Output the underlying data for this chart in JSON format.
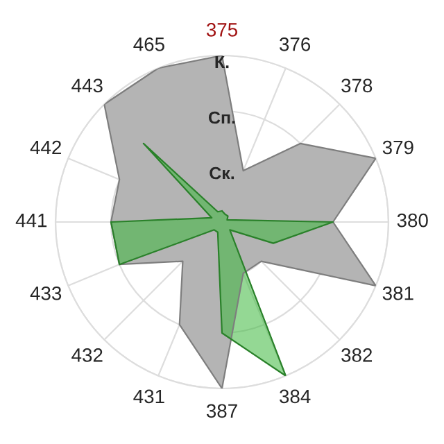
{
  "chart_data": {
    "type": "radar",
    "categories": [
      "375",
      "376",
      "378",
      "379",
      "380",
      "381",
      "382",
      "384",
      "387",
      "431",
      "432",
      "433",
      "441",
      "442",
      "443",
      "465"
    ],
    "series": [
      {
        "color": "#b4b4b4",
        "values": [
          3,
          1,
          2,
          3,
          2,
          3,
          1,
          1,
          3,
          2,
          1,
          2,
          2,
          2,
          3,
          3
        ]
      },
      {
        "color": "#3cb83c",
        "values": [
          0.2,
          0.15,
          0.15,
          0.1,
          2,
          1,
          0.2,
          3,
          2,
          0.2,
          0.2,
          2,
          2,
          0.2,
          2,
          0.2
        ]
      }
    ],
    "ylim": [
      0,
      3
    ],
    "yticks": [
      {
        "value": 1,
        "label": "Ск."
      },
      {
        "value": 2,
        "label": "Сп."
      },
      {
        "value": 3,
        "label": "К."
      }
    ],
    "grid": true
  }
}
